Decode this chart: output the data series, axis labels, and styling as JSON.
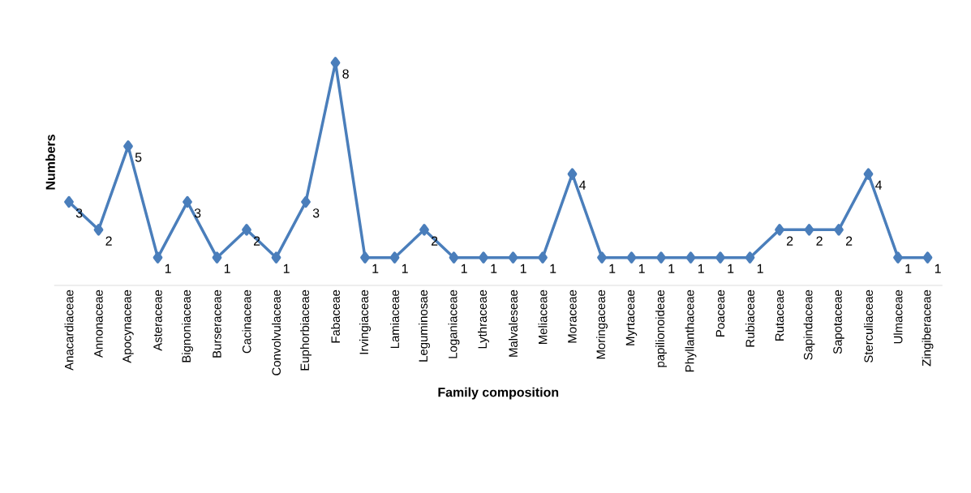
{
  "chart_data": {
    "type": "line",
    "xlabel": "Family composition",
    "ylabel": "Numbers",
    "categories": [
      "Anacardiaceae",
      "Annonaceae",
      "Apocynaceae",
      "Asteraceae",
      "Bignoniaceae",
      "Burseraceae",
      "Cacinaceae",
      "Convolvulaceae",
      "Euphorbiaceae",
      "Fabaceae",
      "Irvingiaceae",
      "Lamiaceae",
      "Leguminosae",
      "Loganiaceae",
      "Lythraceae",
      "Malvaleseae",
      "Meliaceae",
      "Moraceae",
      "Moringaceae",
      "Myrtaceae",
      "papilionoideae",
      "Phyllanthaceae",
      "Poaceae",
      "Rubiaceae",
      "Rutaceae",
      "Sapindaceae",
      "Sapotaceae",
      "Sterculiaceae",
      "Ulmaceae",
      "Zingiberaceae"
    ],
    "values": [
      3,
      2,
      5,
      1,
      3,
      1,
      2,
      1,
      3,
      8,
      1,
      1,
      2,
      1,
      1,
      1,
      1,
      4,
      1,
      1,
      1,
      1,
      1,
      1,
      2,
      2,
      2,
      4,
      1,
      1
    ],
    "color": "#4a7ebb",
    "marker": "diamond",
    "data_labels": true
  }
}
